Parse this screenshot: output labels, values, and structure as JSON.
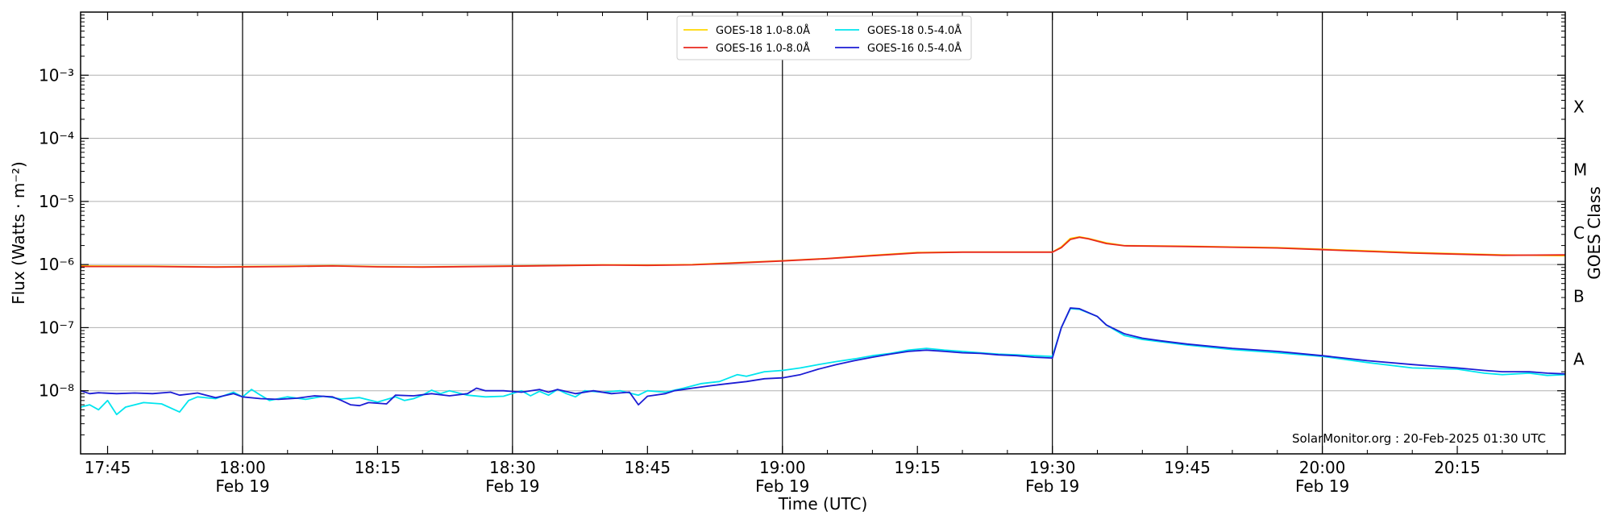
{
  "chart_data": {
    "type": "line",
    "credit": "SolarMonitor.org : 20-Feb-2025 01:30 UTC",
    "xlabel": "Time (UTC)",
    "ylabel": "Flux (Watts · m⁻²)",
    "ylabel_right": "GOES Class",
    "x_range": [
      "17:42",
      "20:27"
    ],
    "y_range": [
      1e-09,
      0.01
    ],
    "y_scale": "log",
    "grid": "horizontal",
    "legend_position": "top-center",
    "x_ticks": [
      {
        "time": "17:45",
        "label": "17:45",
        "sublabel": ""
      },
      {
        "time": "18:00",
        "label": "18:00",
        "sublabel": "Feb 19"
      },
      {
        "time": "18:15",
        "label": "18:15",
        "sublabel": ""
      },
      {
        "time": "18:30",
        "label": "18:30",
        "sublabel": "Feb 19"
      },
      {
        "time": "18:45",
        "label": "18:45",
        "sublabel": ""
      },
      {
        "time": "19:00",
        "label": "19:00",
        "sublabel": "Feb 19"
      },
      {
        "time": "19:15",
        "label": "19:15",
        "sublabel": ""
      },
      {
        "time": "19:30",
        "label": "19:30",
        "sublabel": "Feb 19"
      },
      {
        "time": "19:45",
        "label": "19:45",
        "sublabel": ""
      },
      {
        "time": "20:00",
        "label": "20:00",
        "sublabel": "Feb 19"
      },
      {
        "time": "20:15",
        "label": "20:15",
        "sublabel": ""
      }
    ],
    "day_lines": [
      "18:00",
      "18:30",
      "19:00",
      "19:30",
      "20:00"
    ],
    "y_ticks": [
      {
        "exp": -3,
        "label": "10⁻³"
      },
      {
        "exp": -4,
        "label": "10⁻⁴"
      },
      {
        "exp": -5,
        "label": "10⁻⁵"
      },
      {
        "exp": -6,
        "label": "10⁻⁶"
      },
      {
        "exp": -7,
        "label": "10⁻⁷"
      },
      {
        "exp": -8,
        "label": "10⁻⁸"
      }
    ],
    "goes_classes": [
      {
        "label": "X",
        "exp": -3.5
      },
      {
        "label": "M",
        "exp": -4.5
      },
      {
        "label": "C",
        "exp": -5.5
      },
      {
        "label": "B",
        "exp": -6.5
      },
      {
        "label": "A",
        "exp": -7.5
      }
    ],
    "series": [
      {
        "name": "GOES-18 1.0-8.0Å",
        "color": "#ffd700",
        "points": [
          [
            "17:42",
            9.5e-07
          ],
          [
            "17:50",
            9.4e-07
          ],
          [
            "17:57",
            9.2e-07
          ],
          [
            "18:05",
            9.4e-07
          ],
          [
            "18:10",
            9.6e-07
          ],
          [
            "18:15",
            9.3e-07
          ],
          [
            "18:20",
            9.2e-07
          ],
          [
            "18:30",
            9.5e-07
          ],
          [
            "18:40",
            9.9e-07
          ],
          [
            "18:45",
            9.8e-07
          ],
          [
            "18:50",
            1e-06
          ],
          [
            "18:55",
            1.07e-06
          ],
          [
            "19:00",
            1.15e-06
          ],
          [
            "19:05",
            1.25e-06
          ],
          [
            "19:10",
            1.4e-06
          ],
          [
            "19:15",
            1.55e-06
          ],
          [
            "19:20",
            1.58e-06
          ],
          [
            "19:25",
            1.58e-06
          ],
          [
            "19:30",
            1.58e-06
          ],
          [
            "19:31",
            1.9e-06
          ],
          [
            "19:32",
            2.6e-06
          ],
          [
            "19:33",
            2.75e-06
          ],
          [
            "19:34",
            2.6e-06
          ],
          [
            "19:36",
            2.2e-06
          ],
          [
            "19:38",
            2e-06
          ],
          [
            "19:45",
            1.95e-06
          ],
          [
            "19:55",
            1.85e-06
          ],
          [
            "20:00",
            1.75e-06
          ],
          [
            "20:10",
            1.55e-06
          ],
          [
            "20:20",
            1.42e-06
          ],
          [
            "20:27",
            1.38e-06
          ]
        ]
      },
      {
        "name": "GOES-16 1.0-8.0Å",
        "color": "#e8281e",
        "points": [
          [
            "17:42",
            9.3e-07
          ],
          [
            "17:50",
            9.3e-07
          ],
          [
            "17:57",
            9.1e-07
          ],
          [
            "18:05",
            9.3e-07
          ],
          [
            "18:10",
            9.5e-07
          ],
          [
            "18:15",
            9.2e-07
          ],
          [
            "18:20",
            9.1e-07
          ],
          [
            "18:30",
            9.4e-07
          ],
          [
            "18:40",
            9.8e-07
          ],
          [
            "18:45",
            9.7e-07
          ],
          [
            "18:50",
            9.9e-07
          ],
          [
            "18:55",
            1.06e-06
          ],
          [
            "19:00",
            1.14e-06
          ],
          [
            "19:05",
            1.24e-06
          ],
          [
            "19:10",
            1.38e-06
          ],
          [
            "19:15",
            1.53e-06
          ],
          [
            "19:20",
            1.57e-06
          ],
          [
            "19:25",
            1.57e-06
          ],
          [
            "19:30",
            1.57e-06
          ],
          [
            "19:31",
            1.85e-06
          ],
          [
            "19:32",
            2.5e-06
          ],
          [
            "19:33",
            2.7e-06
          ],
          [
            "19:34",
            2.55e-06
          ],
          [
            "19:36",
            2.15e-06
          ],
          [
            "19:38",
            1.98e-06
          ],
          [
            "19:45",
            1.93e-06
          ],
          [
            "19:55",
            1.83e-06
          ],
          [
            "20:00",
            1.72e-06
          ],
          [
            "20:10",
            1.52e-06
          ],
          [
            "20:20",
            1.4e-06
          ],
          [
            "20:27",
            1.42e-06
          ]
        ]
      },
      {
        "name": "GOES-18 0.5-4.0Å",
        "color": "#00e5ee",
        "points": [
          [
            "17:42",
            5.5e-09
          ],
          [
            "17:43",
            6e-09
          ],
          [
            "17:44",
            5e-09
          ],
          [
            "17:45",
            7e-09
          ],
          [
            "17:46",
            4.2e-09
          ],
          [
            "17:47",
            5.5e-09
          ],
          [
            "17:49",
            6.5e-09
          ],
          [
            "17:51",
            6.2e-09
          ],
          [
            "17:53",
            4.6e-09
          ],
          [
            "17:54",
            7e-09
          ],
          [
            "17:55",
            8e-09
          ],
          [
            "17:57",
            7.5e-09
          ],
          [
            "17:59",
            9.5e-09
          ],
          [
            "18:00",
            8e-09
          ],
          [
            "18:01",
            1.05e-08
          ],
          [
            "18:02",
            8.5e-09
          ],
          [
            "18:03",
            7e-09
          ],
          [
            "18:05",
            8e-09
          ],
          [
            "18:07",
            7.3e-09
          ],
          [
            "18:09",
            8.2e-09
          ],
          [
            "18:11",
            7.4e-09
          ],
          [
            "18:13",
            7.8e-09
          ],
          [
            "18:15",
            6.6e-09
          ],
          [
            "18:17",
            8e-09
          ],
          [
            "18:18",
            7e-09
          ],
          [
            "18:19",
            7.5e-09
          ],
          [
            "18:20",
            8.5e-09
          ],
          [
            "18:21",
            1.02e-08
          ],
          [
            "18:22",
            9e-09
          ],
          [
            "18:23",
            1e-08
          ],
          [
            "18:25",
            8.5e-09
          ],
          [
            "18:27",
            8e-09
          ],
          [
            "18:29",
            8.2e-09
          ],
          [
            "18:31",
            1e-08
          ],
          [
            "18:32",
            8.3e-09
          ],
          [
            "18:33",
            9.8e-09
          ],
          [
            "18:34",
            8.5e-09
          ],
          [
            "18:35",
            1.05e-08
          ],
          [
            "18:36",
            9e-09
          ],
          [
            "18:37",
            8e-09
          ],
          [
            "18:38",
            1e-08
          ],
          [
            "18:40",
            9.5e-09
          ],
          [
            "18:42",
            1e-08
          ],
          [
            "18:44",
            8.5e-09
          ],
          [
            "18:45",
            1e-08
          ],
          [
            "18:47",
            9.5e-09
          ],
          [
            "18:49",
            1.1e-08
          ],
          [
            "18:51",
            1.3e-08
          ],
          [
            "18:53",
            1.4e-08
          ],
          [
            "18:55",
            1.8e-08
          ],
          [
            "18:56",
            1.7e-08
          ],
          [
            "18:58",
            2e-08
          ],
          [
            "19:00",
            2.1e-08
          ],
          [
            "19:02",
            2.3e-08
          ],
          [
            "19:04",
            2.6e-08
          ],
          [
            "19:06",
            2.9e-08
          ],
          [
            "19:08",
            3.2e-08
          ],
          [
            "19:10",
            3.6e-08
          ],
          [
            "19:12",
            3.9e-08
          ],
          [
            "19:14",
            4.4e-08
          ],
          [
            "19:16",
            4.7e-08
          ],
          [
            "19:18",
            4.4e-08
          ],
          [
            "19:20",
            4.2e-08
          ],
          [
            "19:22",
            4e-08
          ],
          [
            "19:24",
            3.8e-08
          ],
          [
            "19:26",
            3.7e-08
          ],
          [
            "19:28",
            3.6e-08
          ],
          [
            "19:30",
            3.5e-08
          ],
          [
            "19:31",
            1e-07
          ],
          [
            "19:32",
            2e-07
          ],
          [
            "19:33",
            1.95e-07
          ],
          [
            "19:35",
            1.5e-07
          ],
          [
            "19:36",
            1.1e-07
          ],
          [
            "19:38",
            7.5e-08
          ],
          [
            "19:40",
            6.5e-08
          ],
          [
            "19:42",
            6e-08
          ],
          [
            "19:45",
            5.3e-08
          ],
          [
            "19:50",
            4.5e-08
          ],
          [
            "19:55",
            4e-08
          ],
          [
            "20:00",
            3.5e-08
          ],
          [
            "20:05",
            2.8e-08
          ],
          [
            "20:10",
            2.3e-08
          ],
          [
            "20:15",
            2.2e-08
          ],
          [
            "20:18",
            1.9e-08
          ],
          [
            "20:20",
            1.8e-08
          ],
          [
            "20:23",
            1.9e-08
          ],
          [
            "20:25",
            1.75e-08
          ],
          [
            "20:27",
            1.8e-08
          ]
        ]
      },
      {
        "name": "GOES-16 0.5-4.0Å",
        "color": "#1c1cd4",
        "points": [
          [
            "17:42",
            1e-08
          ],
          [
            "17:43",
            9e-09
          ],
          [
            "17:44",
            9.3e-09
          ],
          [
            "17:46",
            9e-09
          ],
          [
            "17:48",
            9.2e-09
          ],
          [
            "17:50",
            9e-09
          ],
          [
            "17:52",
            9.5e-09
          ],
          [
            "17:53",
            8.5e-09
          ],
          [
            "17:55",
            9.2e-09
          ],
          [
            "17:57",
            7.8e-09
          ],
          [
            "17:59",
            9e-09
          ],
          [
            "18:00",
            8e-09
          ],
          [
            "18:02",
            7.5e-09
          ],
          [
            "18:04",
            7.3e-09
          ],
          [
            "18:06",
            7.6e-09
          ],
          [
            "18:08",
            8.3e-09
          ],
          [
            "18:10",
            8e-09
          ],
          [
            "18:11",
            7e-09
          ],
          [
            "18:12",
            6e-09
          ],
          [
            "18:13",
            5.8e-09
          ],
          [
            "18:14",
            6.5e-09
          ],
          [
            "18:16",
            6.2e-09
          ],
          [
            "18:17",
            8.5e-09
          ],
          [
            "18:19",
            8.3e-09
          ],
          [
            "18:21",
            9e-09
          ],
          [
            "18:23",
            8.3e-09
          ],
          [
            "18:25",
            9e-09
          ],
          [
            "18:26",
            1.1e-08
          ],
          [
            "18:27",
            1e-08
          ],
          [
            "18:29",
            1e-08
          ],
          [
            "18:31",
            9.5e-09
          ],
          [
            "18:33",
            1.05e-08
          ],
          [
            "18:34",
            9.5e-09
          ],
          [
            "18:35",
            1.05e-08
          ],
          [
            "18:37",
            9e-09
          ],
          [
            "18:39",
            1e-08
          ],
          [
            "18:41",
            9e-09
          ],
          [
            "18:43",
            9.5e-09
          ],
          [
            "18:44",
            6e-09
          ],
          [
            "18:45",
            8.2e-09
          ],
          [
            "18:47",
            9e-09
          ],
          [
            "18:48",
            1e-08
          ],
          [
            "18:50",
            1.1e-08
          ],
          [
            "18:52",
            1.2e-08
          ],
          [
            "18:54",
            1.3e-08
          ],
          [
            "18:56",
            1.4e-08
          ],
          [
            "18:58",
            1.55e-08
          ],
          [
            "19:00",
            1.6e-08
          ],
          [
            "19:02",
            1.8e-08
          ],
          [
            "19:04",
            2.2e-08
          ],
          [
            "19:06",
            2.6e-08
          ],
          [
            "19:08",
            3e-08
          ],
          [
            "19:10",
            3.4e-08
          ],
          [
            "19:12",
            3.8e-08
          ],
          [
            "19:14",
            4.2e-08
          ],
          [
            "19:16",
            4.4e-08
          ],
          [
            "19:18",
            4.2e-08
          ],
          [
            "19:20",
            4e-08
          ],
          [
            "19:22",
            3.9e-08
          ],
          [
            "19:24",
            3.7e-08
          ],
          [
            "19:26",
            3.6e-08
          ],
          [
            "19:28",
            3.4e-08
          ],
          [
            "19:30",
            3.3e-08
          ],
          [
            "19:31",
            1e-07
          ],
          [
            "19:32",
            2.05e-07
          ],
          [
            "19:33",
            2e-07
          ],
          [
            "19:35",
            1.5e-07
          ],
          [
            "19:36",
            1.1e-07
          ],
          [
            "19:38",
            8e-08
          ],
          [
            "19:40",
            6.8e-08
          ],
          [
            "19:42",
            6.2e-08
          ],
          [
            "19:45",
            5.5e-08
          ],
          [
            "19:50",
            4.7e-08
          ],
          [
            "19:55",
            4.2e-08
          ],
          [
            "20:00",
            3.6e-08
          ],
          [
            "20:05",
            3e-08
          ],
          [
            "20:10",
            2.6e-08
          ],
          [
            "20:15",
            2.3e-08
          ],
          [
            "20:18",
            2.1e-08
          ],
          [
            "20:20",
            2e-08
          ],
          [
            "20:23",
            2e-08
          ],
          [
            "20:25",
            1.9e-08
          ],
          [
            "20:27",
            1.85e-08
          ]
        ]
      }
    ]
  }
}
